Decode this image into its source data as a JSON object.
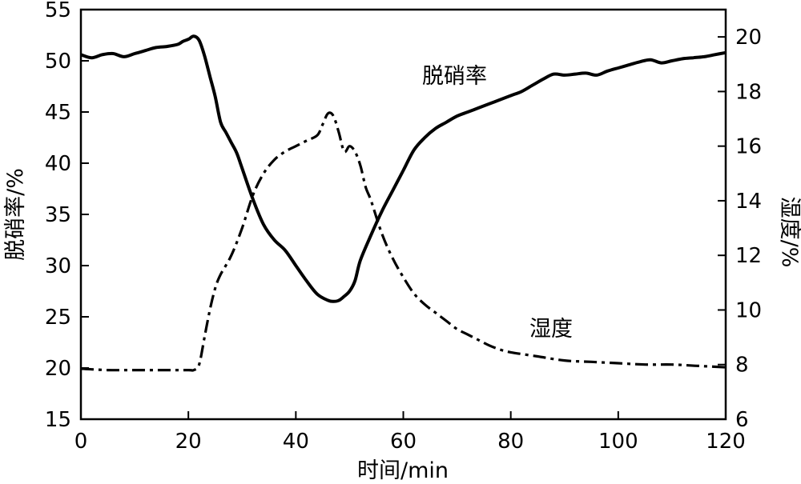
{
  "chart_data": {
    "type": "line",
    "xlabel": "时间/min",
    "ylabel_left": "脱硝率/%",
    "ylabel_right": "湿度/%",
    "xlim": [
      0,
      120
    ],
    "ylim_left": [
      15,
      55
    ],
    "ylim_right": [
      6,
      21
    ],
    "x_ticks": [
      0,
      20,
      40,
      60,
      80,
      100,
      120
    ],
    "y_ticks_left": [
      15,
      20,
      25,
      30,
      35,
      40,
      45,
      50,
      55
    ],
    "y_ticks_right": [
      6,
      8,
      10,
      12,
      14,
      16,
      18,
      20
    ],
    "grid": false,
    "annotations": [
      {
        "text": "脱硝率",
        "series": "脱硝率"
      },
      {
        "text": "湿度",
        "series": "湿度"
      }
    ],
    "series": [
      {
        "name": "脱硝率",
        "axis": "left",
        "style": "solid",
        "x": [
          0,
          2,
          4,
          6,
          8,
          10,
          12,
          14,
          16,
          18,
          19,
          20,
          21,
          22,
          23,
          24,
          25,
          26,
          27,
          28,
          29,
          30,
          32,
          34,
          36,
          38,
          40,
          42,
          44,
          46,
          47,
          48,
          49,
          50,
          51,
          52,
          54,
          56,
          58,
          60,
          62,
          64,
          66,
          68,
          70,
          72,
          74,
          76,
          78,
          80,
          82,
          84,
          86,
          88,
          90,
          92,
          94,
          96,
          98,
          100,
          102,
          104,
          106,
          108,
          110,
          112,
          114,
          116,
          118,
          120
        ],
        "values": [
          50.6,
          50.3,
          50.6,
          50.7,
          50.4,
          50.7,
          51.0,
          51.3,
          51.4,
          51.6,
          51.9,
          52.1,
          52.4,
          52.0,
          50.5,
          48.5,
          46.5,
          44.0,
          43.0,
          42.0,
          41.0,
          39.5,
          36.5,
          34.0,
          32.5,
          31.5,
          30.0,
          28.5,
          27.2,
          26.6,
          26.5,
          26.6,
          27.0,
          27.5,
          28.5,
          30.5,
          33.0,
          35.3,
          37.3,
          39.3,
          41.3,
          42.5,
          43.4,
          44.0,
          44.6,
          45.0,
          45.4,
          45.8,
          46.2,
          46.6,
          47.0,
          47.6,
          48.2,
          48.7,
          48.6,
          48.7,
          48.8,
          48.6,
          49.0,
          49.3,
          49.6,
          49.9,
          50.1,
          49.8,
          50.0,
          50.2,
          50.3,
          50.4,
          50.6,
          50.8
        ]
      },
      {
        "name": "湿度",
        "axis": "right",
        "style": "dash-dot",
        "x": [
          0,
          5,
          10,
          15,
          20,
          21,
          22,
          23,
          24,
          25,
          26,
          28,
          30,
          32,
          34,
          36,
          38,
          40,
          42,
          44,
          45,
          46,
          47,
          48,
          49,
          50,
          51,
          52,
          53,
          54,
          56,
          58,
          60,
          62,
          64,
          66,
          68,
          70,
          72,
          74,
          76,
          78,
          80,
          85,
          90,
          95,
          100,
          105,
          110,
          115,
          120
        ],
        "values": [
          7.85,
          7.8,
          7.8,
          7.8,
          7.8,
          7.8,
          8.0,
          9.0,
          10.0,
          10.8,
          11.3,
          12.0,
          13.0,
          14.2,
          15.0,
          15.5,
          15.8,
          16.0,
          16.2,
          16.4,
          16.8,
          17.2,
          17.1,
          16.5,
          15.8,
          16.0,
          15.8,
          15.3,
          14.5,
          14.0,
          12.8,
          11.9,
          11.2,
          10.6,
          10.2,
          9.9,
          9.6,
          9.3,
          9.1,
          8.9,
          8.7,
          8.55,
          8.45,
          8.3,
          8.15,
          8.1,
          8.05,
          8.0,
          8.0,
          7.95,
          7.9
        ]
      }
    ]
  }
}
